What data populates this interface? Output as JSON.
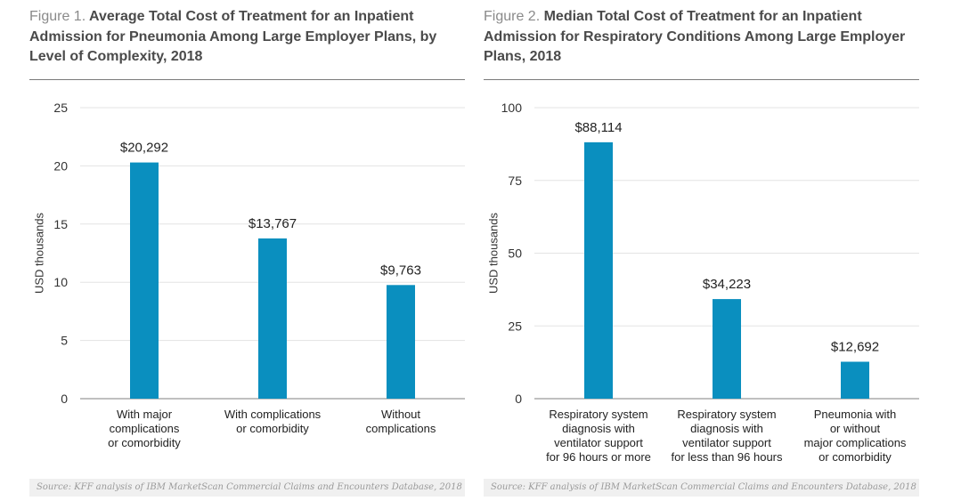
{
  "charts": [
    {
      "figure_label": "Figure 1.",
      "title": "Average Total Cost of Treatment for an Inpatient Admission for Pneumonia Among Large Employer Plans, by Level of Complexity, 2018",
      "source": "Source: KFF analysis of IBM MarketScan Commercial Claims and Encounters Database, 2018"
    },
    {
      "figure_label": "Figure 2.",
      "title": "Median Total Cost of Treatment for an Inpatient Admission for Respiratory Conditions Among Large Employer Plans, 2018",
      "source": "Source: KFF analysis of IBM MarketScan Commercial Claims and Encounters Database, 2018"
    }
  ],
  "chart_data": [
    {
      "type": "bar",
      "title": "Average Total Cost of Treatment for an Inpatient Admission for Pneumonia Among Large Employer Plans, by Level of Complexity, 2018",
      "categories": [
        [
          "With major",
          "complications",
          "or comorbidity"
        ],
        [
          "With complications",
          "or comorbidity"
        ],
        [
          "Without",
          "complications"
        ]
      ],
      "values": [
        20.292,
        13.767,
        9.763
      ],
      "data_labels": [
        "$20,292",
        "$13,767",
        "$9,763"
      ],
      "ylabel": "USD thousands",
      "ylim": [
        0,
        25
      ],
      "yticks": [
        0,
        5,
        10,
        15,
        20,
        25
      ],
      "grid": true,
      "color": "#0a8fbf"
    },
    {
      "type": "bar",
      "title": "Median Total Cost of Treatment for an Inpatient Admission for Respiratory Conditions Among Large Employer Plans, 2018",
      "categories": [
        [
          "Respiratory system",
          "diagnosis with",
          "ventilator support",
          "for 96 hours or more"
        ],
        [
          "Respiratory system",
          "diagnosis with",
          "ventilator support",
          "for less than 96 hours"
        ],
        [
          "Pneumonia with",
          "or without",
          "major complications",
          "or comorbidity"
        ]
      ],
      "values": [
        88.114,
        34.223,
        12.692
      ],
      "data_labels": [
        "$88,114",
        "$34,223",
        "$12,692"
      ],
      "ylabel": "USD thousands",
      "ylim": [
        0,
        100
      ],
      "yticks": [
        0,
        25,
        50,
        75,
        100
      ],
      "grid": true,
      "color": "#0a8fbf"
    }
  ]
}
